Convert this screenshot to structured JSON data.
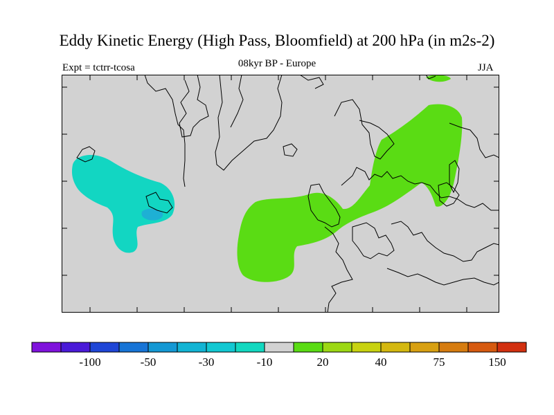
{
  "title": "Eddy Kinetic Energy (High Pass, Bloomfield) at 200 hPa (in m2s-2)",
  "experiment_label": "Expt = tctrr-tcosa",
  "subtitle": "08kyr BP - Europe",
  "season": "JJA",
  "colors": {
    "land_background": "#d2d2d2",
    "negative_anomaly": "#12d6c2",
    "negative_anomaly_dark": "#1eb0d4",
    "positive_anomaly": "#5adc14"
  },
  "colorbar": {
    "swatches": [
      "#7f12dc",
      "#4a1ad8",
      "#1f46d6",
      "#1774d6",
      "#1498d4",
      "#12b4d4",
      "#12c8d2",
      "#12d8c0",
      "#d2d2d2",
      "#5adc14",
      "#9cd814",
      "#c8d210",
      "#d4b810",
      "#d8a012",
      "#d67c10",
      "#d65a10",
      "#d23010"
    ],
    "tick_labels": [
      "-100",
      "-50",
      "-30",
      "-10",
      "20",
      "40",
      "75",
      "150"
    ]
  }
}
